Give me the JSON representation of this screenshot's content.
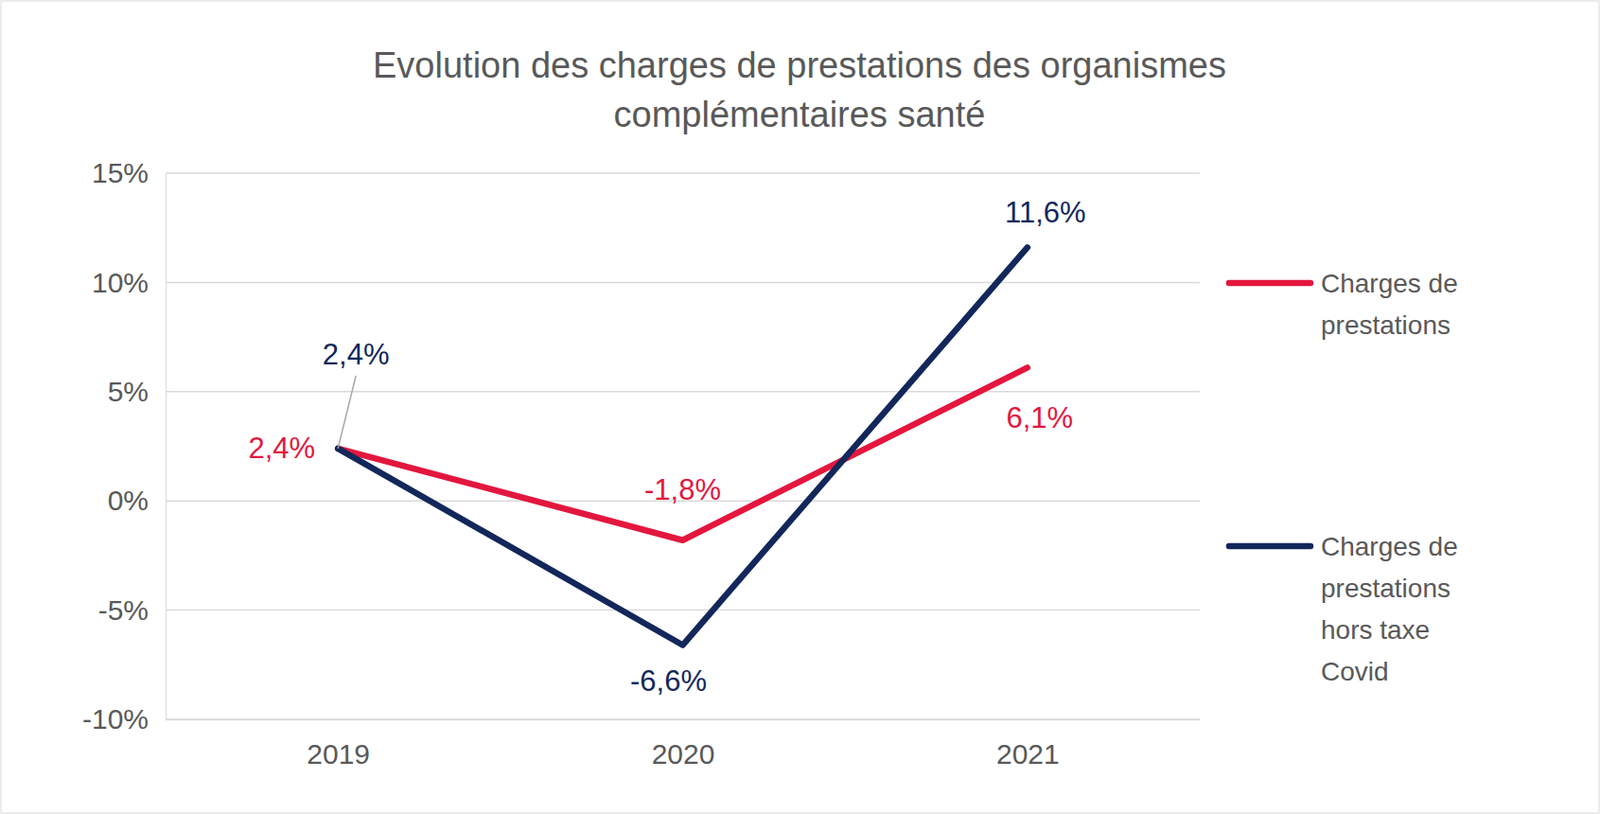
{
  "chart_data": {
    "type": "line",
    "title": "Evolution des charges de prestations des organismes complémentaires santé",
    "categories": [
      "2019",
      "2020",
      "2021"
    ],
    "series": [
      {
        "name": "Charges de prestations",
        "color": "#e3173e",
        "values": [
          2.4,
          -1.8,
          6.1
        ],
        "value_labels": [
          "2,4%",
          "-1,8%",
          "6,1%"
        ]
      },
      {
        "name": "Charges de prestations hors taxe Covid",
        "color": "#12275a",
        "values": [
          2.4,
          -6.6,
          11.6
        ],
        "value_labels": [
          "2,4%",
          "-6,6%",
          "11,6%"
        ]
      }
    ],
    "ylim": [
      -10,
      15
    ],
    "yticks": [
      {
        "value": -10,
        "label": "-10%"
      },
      {
        "value": -5,
        "label": "-5%"
      },
      {
        "value": 0,
        "label": "0%"
      },
      {
        "value": 5,
        "label": "5%"
      },
      {
        "value": 10,
        "label": "10%"
      },
      {
        "value": 15,
        "label": "15%"
      }
    ],
    "grid": true,
    "data_labels": true,
    "legend": "right"
  }
}
